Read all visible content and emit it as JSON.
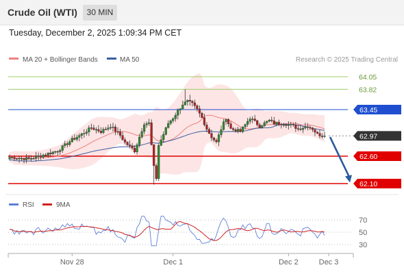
{
  "header": {
    "instrument": "Crude Oil (WTI)",
    "timeframe": "30 MIN"
  },
  "timestamp": "Tuesday, December 2, 2025 1:09:34 PM CET",
  "legend": {
    "ma20": "MA 20 + Bollinger Bands",
    "ma50": "MA 50",
    "rsi": "RSI",
    "rsi_ma": "9MA"
  },
  "credit": "Research © 2025 Trading Central",
  "colors": {
    "ma20": "#f08080",
    "ma50": "#3a5fa0",
    "bands": "#fde0e0",
    "up": "#2e8b2e",
    "down": "#b22222",
    "support": "#e00000",
    "pivot": "#1f4fd0",
    "resistance": "#9ccc6a",
    "arrow": "#2b5aa0",
    "current": "#333333",
    "rsi": "#5b7fd8",
    "rsi_ma": "#d02020"
  },
  "chart_data": {
    "type": "candlestick",
    "x_ticks": [
      "Nov 28",
      "Dec 1",
      "Dec 2",
      "Dec 3"
    ],
    "y_range": [
      61.95,
      64.25
    ],
    "levels": [
      {
        "value": "64.05",
        "kind": "resistance"
      },
      {
        "value": "63.82",
        "kind": "resistance"
      },
      {
        "value": "63.45",
        "kind": "pivot"
      },
      {
        "value": "62.97",
        "kind": "current"
      },
      {
        "value": "62.60",
        "kind": "support"
      },
      {
        "value": "62.10",
        "kind": "support"
      }
    ],
    "forecast_arrow": {
      "from": 62.95,
      "to": 62.12
    },
    "rsi_ticks": [
      "70",
      "50",
      "30"
    ],
    "rsi_range": [
      20,
      80
    ]
  }
}
